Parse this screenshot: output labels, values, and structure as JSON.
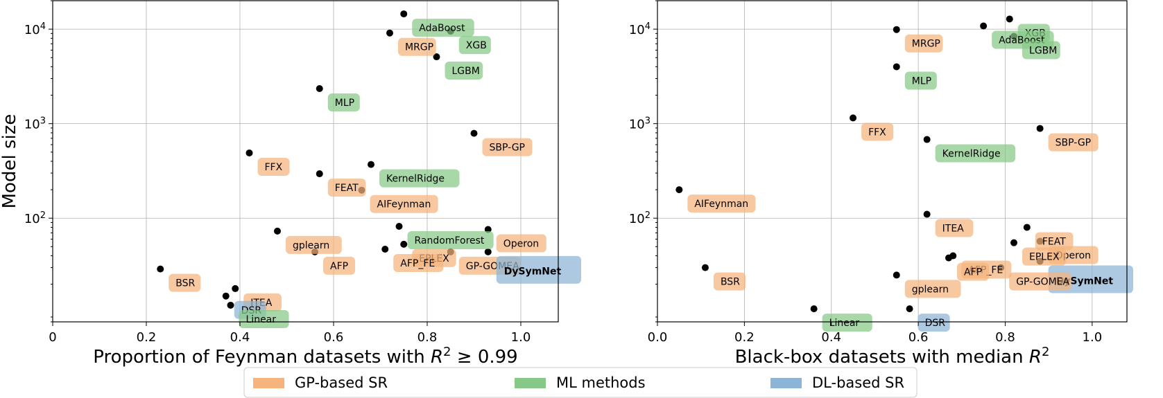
{
  "colors": {
    "gp": "#f5b47d",
    "ml": "#86c986",
    "dl": "#8cb4d6",
    "marker": "#000000"
  },
  "legend": {
    "items": [
      {
        "key": "gp",
        "label": "GP-based SR"
      },
      {
        "key": "ml",
        "label": "ML methods"
      },
      {
        "key": "dl",
        "label": "DL-based SR"
      }
    ]
  },
  "chart_data": [
    {
      "type": "scatter",
      "xlabel": "Proportion of Feynman datasets with R² ≥ 0.99",
      "xlabel_parts": {
        "pre": "Proportion of Feynman datasets with ",
        "var": "R",
        "sup": "2",
        "post": " ≥ 0.99"
      },
      "ylabel": "Model size",
      "yscale": "log",
      "xlim": [
        0,
        1.08
      ],
      "ylim": [
        8,
        20000
      ],
      "xticks": [
        0,
        0.2,
        0.4,
        0.6,
        0.8,
        1.0
      ],
      "xtick_labels": [
        "0",
        "0.2",
        "0.4",
        "0.6",
        "0.8",
        "1.0"
      ],
      "yticks": [
        100,
        1000,
        10000
      ],
      "ytick_labels": [
        {
          "base": "10",
          "exp": "2"
        },
        {
          "base": "10",
          "exp": "3"
        },
        {
          "base": "10",
          "exp": "4"
        }
      ],
      "points": [
        {
          "name": "AdaBoost",
          "x": 0.75,
          "y": 14500,
          "group": "ml"
        },
        {
          "name": "XGB",
          "x": 0.85,
          "y": 9500,
          "group": "ml"
        },
        {
          "name": "MRGP",
          "x": 0.72,
          "y": 9100,
          "group": "gp"
        },
        {
          "name": "LGBM",
          "x": 0.82,
          "y": 5100,
          "group": "ml"
        },
        {
          "name": "MLP",
          "x": 0.57,
          "y": 2350,
          "group": "ml"
        },
        {
          "name": "SBP-GP",
          "x": 0.9,
          "y": 790,
          "group": "gp"
        },
        {
          "name": "FFX",
          "x": 0.42,
          "y": 490,
          "group": "gp"
        },
        {
          "name": "KernelRidge",
          "x": 0.68,
          "y": 370,
          "group": "ml"
        },
        {
          "name": "FEAT",
          "x": 0.57,
          "y": 295,
          "group": "gp"
        },
        {
          "name": "AIFeynman",
          "x": 0.66,
          "y": 198,
          "group": "gp"
        },
        {
          "name": "RandomForest",
          "x": 0.74,
          "y": 82,
          "group": "ml"
        },
        {
          "name": "Operon",
          "x": 0.93,
          "y": 76,
          "group": "gp"
        },
        {
          "name": "gplearn",
          "x": 0.48,
          "y": 73,
          "group": "gp"
        },
        {
          "name": "EPLEX",
          "x": 0.75,
          "y": 53,
          "group": "gp"
        },
        {
          "name": "AFP_FE",
          "x": 0.71,
          "y": 47,
          "group": "gp"
        },
        {
          "name": "AFP",
          "x": 0.56,
          "y": 44,
          "group": "gp"
        },
        {
          "name": "GP-GOMEA",
          "x": 0.85,
          "y": 44,
          "group": "gp"
        },
        {
          "name": "DySymNet",
          "x": 0.93,
          "y": 44,
          "group": "dl",
          "bold": true
        },
        {
          "name": "BSR",
          "x": 0.23,
          "y": 29,
          "group": "gp"
        },
        {
          "name": "ITEA",
          "x": 0.39,
          "y": 18,
          "group": "gp"
        },
        {
          "name": "DSR",
          "x": 0.37,
          "y": 15,
          "group": "dl"
        },
        {
          "name": "Linear",
          "x": 0.38,
          "y": 12,
          "group": "ml"
        }
      ]
    },
    {
      "type": "scatter",
      "xlabel": "Black-box datasets with median R²",
      "xlabel_parts": {
        "pre": "Black-box datasets with median ",
        "var": "R",
        "sup": "2",
        "post": ""
      },
      "ylabel": "",
      "yscale": "log",
      "xlim": [
        0,
        1.08
      ],
      "ylim": [
        8,
        20000
      ],
      "xticks": [
        0,
        0.2,
        0.4,
        0.6,
        0.8,
        1.0
      ],
      "xtick_labels": [
        "0.0",
        "0.2",
        "0.4",
        "0.6",
        "0.8",
        "1.0"
      ],
      "yticks": [
        100,
        1000,
        10000
      ],
      "ytick_labels": [
        {
          "base": "10",
          "exp": "2"
        },
        {
          "base": "10",
          "exp": "3"
        },
        {
          "base": "10",
          "exp": "4"
        }
      ],
      "points": [
        {
          "name": "XGB",
          "x": 0.81,
          "y": 12800,
          "group": "ml"
        },
        {
          "name": "AdaBoost",
          "x": 0.75,
          "y": 10800,
          "group": "ml"
        },
        {
          "name": "MRGP",
          "x": 0.55,
          "y": 9900,
          "group": "gp"
        },
        {
          "name": "LGBM",
          "x": 0.82,
          "y": 8400,
          "group": "ml"
        },
        {
          "name": "MLP",
          "x": 0.55,
          "y": 4000,
          "group": "ml"
        },
        {
          "name": "FFX",
          "x": 0.45,
          "y": 1150,
          "group": "gp"
        },
        {
          "name": "SBP-GP",
          "x": 0.88,
          "y": 890,
          "group": "gp"
        },
        {
          "name": "KernelRidge",
          "x": 0.62,
          "y": 680,
          "group": "ml"
        },
        {
          "name": "AIFeynman",
          "x": 0.05,
          "y": 200,
          "group": "gp"
        },
        {
          "name": "ITEA",
          "x": 0.62,
          "y": 110,
          "group": "gp"
        },
        {
          "name": "FEAT",
          "x": 0.85,
          "y": 80,
          "group": "gp"
        },
        {
          "name": "Operon",
          "x": 0.88,
          "y": 57,
          "group": "gp"
        },
        {
          "name": "EPLEX",
          "x": 0.82,
          "y": 55,
          "group": "gp"
        },
        {
          "name": "AFP_FE",
          "x": 0.68,
          "y": 40,
          "group": "gp"
        },
        {
          "name": "AFP",
          "x": 0.67,
          "y": 38,
          "group": "gp"
        },
        {
          "name": "DySymNet",
          "x": 0.88,
          "y": 35,
          "group": "dl",
          "bold": true
        },
        {
          "name": "BSR",
          "x": 0.11,
          "y": 30,
          "group": "gp"
        },
        {
          "name": "GP-GOMEA",
          "x": 0.79,
          "y": 30,
          "group": "gp"
        },
        {
          "name": "gplearn",
          "x": 0.55,
          "y": 25,
          "group": "gp"
        },
        {
          "name": "Linear",
          "x": 0.36,
          "y": 11,
          "group": "ml"
        },
        {
          "name": "DSR",
          "x": 0.58,
          "y": 11,
          "group": "dl"
        }
      ]
    }
  ]
}
